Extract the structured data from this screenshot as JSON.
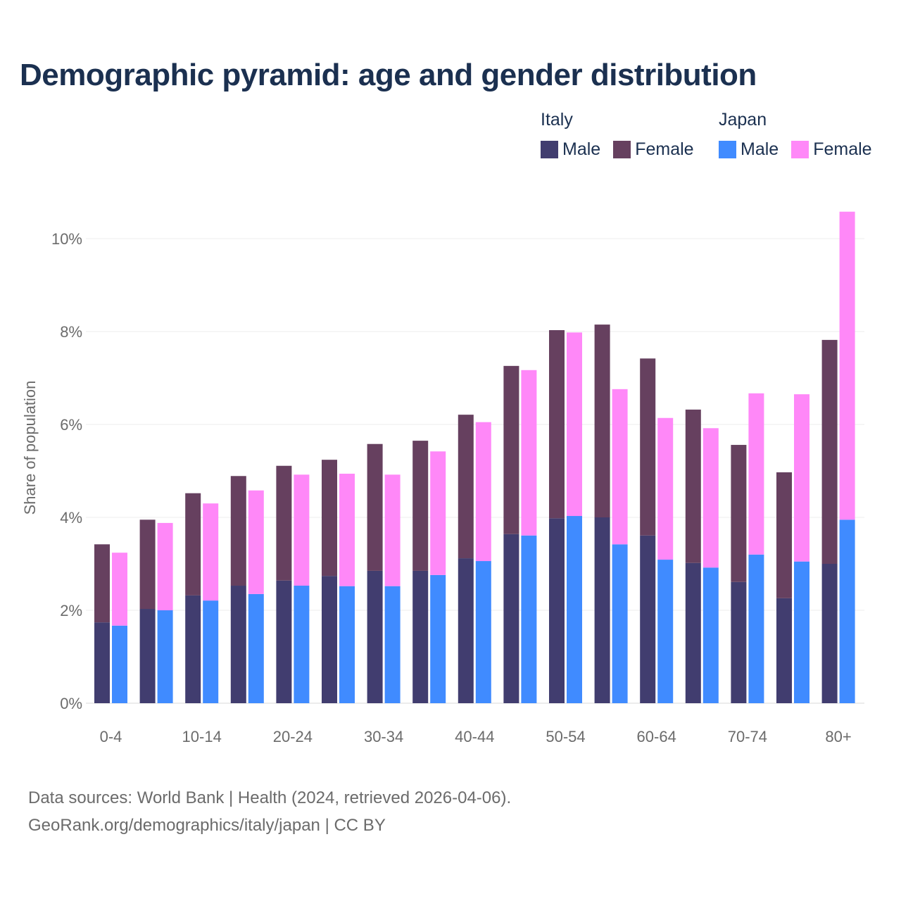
{
  "chart_data": {
    "type": "bar",
    "stacked": true,
    "title": "Demographic pyramid: age and gender distribution",
    "xlabel": "",
    "ylabel": "Share of population",
    "ylim": [
      0,
      10.8
    ],
    "yticks": [
      0,
      2,
      4,
      6,
      8,
      10
    ],
    "ytick_labels": [
      "0%",
      "2%",
      "4%",
      "6%",
      "8%",
      "10%"
    ],
    "grid": true,
    "legend_position": "top-right",
    "categories": [
      "0-4",
      "5-9",
      "10-14",
      "15-19",
      "20-24",
      "25-29",
      "30-34",
      "35-39",
      "40-44",
      "45-49",
      "50-54",
      "55-59",
      "60-64",
      "65-69",
      "70-74",
      "75-79",
      "80+"
    ],
    "xtick_labels": [
      "0-4",
      "10-14",
      "20-24",
      "30-34",
      "40-44",
      "50-54",
      "60-64",
      "70-74",
      "80+"
    ],
    "groups": [
      {
        "name": "Italy",
        "series": [
          {
            "name": "Male",
            "color": "#413d6f",
            "values": [
              1.74,
              2.03,
              2.32,
              2.53,
              2.64,
              2.74,
              2.85,
              2.85,
              3.12,
              3.64,
              3.98,
              4.0,
              3.61,
              3.02,
              2.61,
              2.26,
              3.0
            ]
          },
          {
            "name": "Female",
            "color": "#66405f",
            "values": [
              1.68,
              1.92,
              2.2,
              2.36,
              2.47,
              2.5,
              2.73,
              2.8,
              3.09,
              3.62,
              4.05,
              4.15,
              3.81,
              3.3,
              2.95,
              2.71,
              4.82
            ]
          }
        ]
      },
      {
        "name": "Japan",
        "series": [
          {
            "name": "Male",
            "color": "#408bff",
            "values": [
              1.67,
              2.0,
              2.21,
              2.35,
              2.53,
              2.52,
              2.52,
              2.76,
              3.06,
              3.61,
              4.03,
              3.42,
              3.09,
              2.92,
              3.2,
              3.05,
              3.95
            ]
          },
          {
            "name": "Female",
            "color": "#ff88f8",
            "values": [
              1.57,
              1.88,
              2.09,
              2.23,
              2.39,
              2.42,
              2.4,
              2.66,
              2.99,
              3.56,
              3.95,
              3.34,
              3.05,
              3.0,
              3.47,
              3.6,
              6.63
            ]
          }
        ]
      }
    ]
  },
  "footer": {
    "line1": "Data sources: World Bank | Health (2024, retrieved 2026-04-06).",
    "line2": "GeoRank.org/demographics/italy/japan | CC BY"
  }
}
